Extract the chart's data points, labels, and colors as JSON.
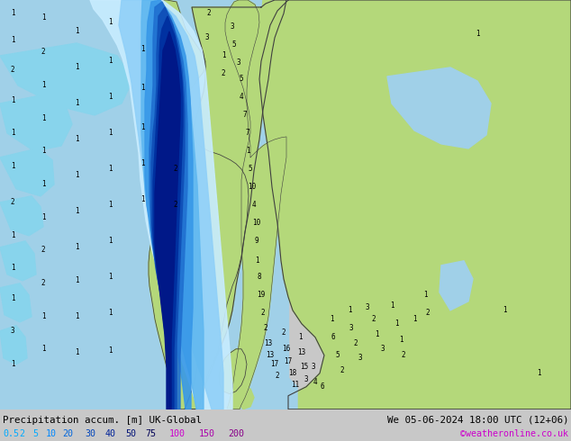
{
  "title_left": "Precipitation accum. [m] UK-Global",
  "title_right": "We 05-06-2024 18:00 UTC (12+06)",
  "credit": "©weatheronline.co.uk",
  "colorbar_labels": [
    "0.5",
    "2",
    "5",
    "10",
    "20",
    "30",
    "40",
    "50",
    "75",
    "100",
    "150",
    "200"
  ],
  "colorbar_text_colors": [
    "#00aaff",
    "#00aaff",
    "#00aaff",
    "#0088ff",
    "#0066dd",
    "#0044bb",
    "#002299",
    "#001177",
    "#000055",
    "#cc00cc",
    "#aa00aa",
    "#880088"
  ],
  "bg_gray": "#c8c8c8",
  "land_green": "#b4d87a",
  "sea_blue": "#a0d0e8",
  "precip_1": "#c8ecff",
  "precip_2": "#90d0f8",
  "precip_3": "#60b8f0",
  "precip_4": "#3898e8",
  "precip_5": "#2070d0",
  "precip_6": "#1050b8",
  "precip_7": "#0030a0",
  "precip_8": "#001888",
  "border_color": "#404040",
  "thin_border": "#888888",
  "credit_color": "#cc00cc",
  "figwidth": 6.34,
  "figheight": 4.9,
  "dpi": 100,
  "num_labels": [
    [
      14,
      15,
      "1"
    ],
    [
      14,
      45,
      "1"
    ],
    [
      14,
      78,
      "2"
    ],
    [
      14,
      112,
      "1"
    ],
    [
      14,
      148,
      "1"
    ],
    [
      14,
      185,
      "1"
    ],
    [
      14,
      225,
      "2"
    ],
    [
      14,
      262,
      "1"
    ],
    [
      14,
      298,
      "1"
    ],
    [
      14,
      332,
      "1"
    ],
    [
      14,
      368,
      "3"
    ],
    [
      14,
      405,
      "1"
    ],
    [
      48,
      20,
      "1"
    ],
    [
      48,
      58,
      "2"
    ],
    [
      48,
      95,
      "1"
    ],
    [
      48,
      132,
      "1"
    ],
    [
      48,
      168,
      "1"
    ],
    [
      48,
      205,
      "1"
    ],
    [
      48,
      242,
      "1"
    ],
    [
      48,
      278,
      "2"
    ],
    [
      48,
      315,
      "2"
    ],
    [
      48,
      352,
      "1"
    ],
    [
      48,
      388,
      "1"
    ],
    [
      85,
      35,
      "1"
    ],
    [
      85,
      75,
      "1"
    ],
    [
      85,
      115,
      "1"
    ],
    [
      85,
      155,
      "1"
    ],
    [
      85,
      195,
      "1"
    ],
    [
      85,
      235,
      "1"
    ],
    [
      85,
      275,
      "1"
    ],
    [
      85,
      312,
      "1"
    ],
    [
      85,
      352,
      "1"
    ],
    [
      85,
      392,
      "1"
    ],
    [
      122,
      25,
      "1"
    ],
    [
      122,
      68,
      "1"
    ],
    [
      122,
      108,
      "1"
    ],
    [
      122,
      148,
      "1"
    ],
    [
      122,
      188,
      "1"
    ],
    [
      122,
      228,
      "1"
    ],
    [
      122,
      268,
      "1"
    ],
    [
      122,
      308,
      "1"
    ],
    [
      122,
      348,
      "1"
    ],
    [
      122,
      390,
      "1"
    ],
    [
      158,
      55,
      "1"
    ],
    [
      158,
      98,
      "1"
    ],
    [
      158,
      142,
      "1"
    ],
    [
      158,
      182,
      "1"
    ],
    [
      158,
      222,
      "1"
    ],
    [
      195,
      188,
      "2"
    ],
    [
      195,
      228,
      "2"
    ],
    [
      230,
      42,
      "3"
    ],
    [
      232,
      15,
      "2"
    ],
    [
      248,
      62,
      "1"
    ],
    [
      248,
      82,
      "2"
    ],
    [
      258,
      30,
      "3"
    ],
    [
      260,
      50,
      "5"
    ],
    [
      265,
      70,
      "3"
    ],
    [
      268,
      88,
      "5"
    ],
    [
      268,
      108,
      "4"
    ],
    [
      272,
      128,
      "7"
    ],
    [
      275,
      148,
      "7"
    ],
    [
      275,
      168,
      "1"
    ],
    [
      278,
      188,
      "5"
    ],
    [
      280,
      208,
      "10"
    ],
    [
      282,
      228,
      "4"
    ],
    [
      285,
      248,
      "10"
    ],
    [
      285,
      268,
      "9"
    ],
    [
      285,
      290,
      "1"
    ],
    [
      288,
      308,
      "8"
    ],
    [
      290,
      328,
      "19"
    ],
    [
      292,
      348,
      "2"
    ],
    [
      295,
      365,
      "2"
    ],
    [
      298,
      382,
      "13"
    ],
    [
      300,
      395,
      "13"
    ],
    [
      305,
      405,
      "17"
    ],
    [
      308,
      418,
      "2"
    ],
    [
      315,
      370,
      "2"
    ],
    [
      318,
      388,
      "16"
    ],
    [
      320,
      402,
      "17"
    ],
    [
      325,
      415,
      "18"
    ],
    [
      328,
      428,
      "11"
    ],
    [
      333,
      375,
      "1"
    ],
    [
      335,
      392,
      "13"
    ],
    [
      338,
      408,
      "15"
    ],
    [
      340,
      422,
      "3"
    ],
    [
      348,
      408,
      "3"
    ],
    [
      350,
      425,
      "4"
    ],
    [
      358,
      430,
      "6"
    ],
    [
      368,
      355,
      "1"
    ],
    [
      370,
      375,
      "6"
    ],
    [
      375,
      395,
      "5"
    ],
    [
      380,
      412,
      "2"
    ],
    [
      388,
      345,
      "1"
    ],
    [
      390,
      365,
      "3"
    ],
    [
      395,
      382,
      "2"
    ],
    [
      400,
      398,
      "3"
    ],
    [
      408,
      342,
      "3"
    ],
    [
      415,
      355,
      "2"
    ],
    [
      418,
      372,
      "1"
    ],
    [
      425,
      388,
      "3"
    ],
    [
      435,
      340,
      "1"
    ],
    [
      440,
      360,
      "1"
    ],
    [
      445,
      378,
      "1"
    ],
    [
      448,
      395,
      "2"
    ],
    [
      460,
      355,
      "1"
    ],
    [
      472,
      328,
      "1"
    ],
    [
      475,
      348,
      "2"
    ],
    [
      530,
      38,
      "1"
    ],
    [
      560,
      345,
      "1"
    ],
    [
      598,
      415,
      "1"
    ]
  ]
}
